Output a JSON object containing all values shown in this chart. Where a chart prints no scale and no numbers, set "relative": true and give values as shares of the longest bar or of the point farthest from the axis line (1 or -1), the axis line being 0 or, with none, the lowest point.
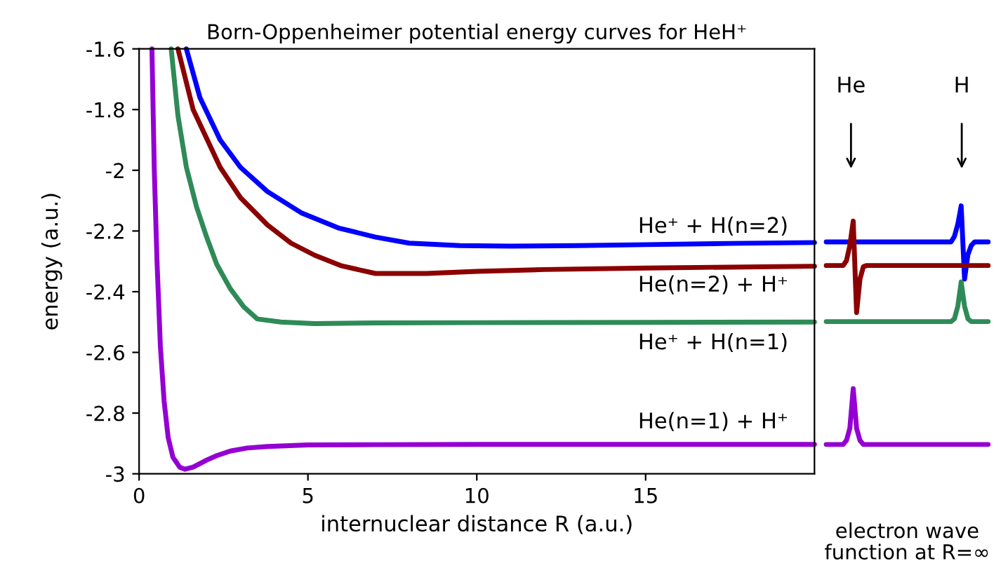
{
  "chart_data": [
    {
      "type": "line",
      "title": "Born-Oppenheimer potential energy curves for HeH⁺",
      "xlabel": "internuclear distance R (a.u.)",
      "ylabel": "energy (a.u.)",
      "xlim": [
        0,
        20
      ],
      "ylim": [
        -3,
        -1.6
      ],
      "xticks": [
        0,
        5,
        10,
        15
      ],
      "yticks": [
        -3,
        -2.8,
        -2.6,
        -2.4,
        -2.2,
        -2,
        -1.8,
        -1.6
      ],
      "grid": false,
      "legend": false,
      "series": [
        {
          "color": "#0000ff",
          "x": [
            1.4,
            1.8,
            2.4,
            3.0,
            3.8,
            4.8,
            5.9,
            7,
            8,
            9.5,
            11,
            13,
            15,
            17.5,
            20
          ],
          "values": [
            -1.6,
            -1.76,
            -1.9,
            -1.99,
            -2.07,
            -2.14,
            -2.19,
            -2.22,
            -2.24,
            -2.248,
            -2.25,
            -2.248,
            -2.245,
            -2.241,
            -2.238
          ]
        },
        {
          "color": "#8b0000",
          "x": [
            1.15,
            1.6,
            2.4,
            3.0,
            3.8,
            4.5,
            5.2,
            6,
            7,
            8.5,
            10,
            12,
            15,
            17.5,
            20
          ],
          "values": [
            -1.6,
            -1.8,
            -1.99,
            -2.09,
            -2.18,
            -2.24,
            -2.28,
            -2.315,
            -2.34,
            -2.34,
            -2.333,
            -2.327,
            -2.322,
            -2.319,
            -2.316
          ]
        },
        {
          "color": "#2e8b57",
          "x": [
            0.95,
            1.15,
            1.4,
            1.7,
            2.0,
            2.3,
            2.7,
            3.1,
            3.5,
            4.2,
            5.2,
            7,
            10,
            15,
            20
          ],
          "values": [
            -1.6,
            -1.82,
            -1.99,
            -2.12,
            -2.22,
            -2.31,
            -2.39,
            -2.45,
            -2.49,
            -2.5,
            -2.505,
            -2.503,
            -2.502,
            -2.501,
            -2.5
          ]
        },
        {
          "color": "#9400d3",
          "x": [
            0.38,
            0.45,
            0.53,
            0.63,
            0.74,
            0.86,
            1.0,
            1.2,
            1.36,
            1.6,
            2.0,
            2.3,
            2.7,
            3.2,
            3.8,
            5,
            7,
            10,
            15,
            20
          ],
          "values": [
            -1.6,
            -2.0,
            -2.3,
            -2.58,
            -2.76,
            -2.88,
            -2.945,
            -2.978,
            -2.985,
            -2.978,
            -2.955,
            -2.94,
            -2.925,
            -2.915,
            -2.91,
            -2.905,
            -2.904,
            -2.903,
            -2.903,
            -2.903
          ]
        }
      ],
      "annotations": [
        "He⁺ + H(n=2)",
        "He(n=2) + H⁺",
        "He⁺ + H(n=1)",
        "He(n=1) + H⁺"
      ]
    },
    {
      "type": "line",
      "xlabel": "electron wave function at R=∞",
      "relative": true,
      "legend": false,
      "grid": false,
      "categories": [
        null,
        null,
        null,
        null,
        null,
        null,
        null,
        null,
        null,
        null,
        null,
        null,
        null,
        null,
        null,
        null,
        null,
        null,
        null,
        null,
        null,
        null,
        null,
        null,
        null,
        null,
        null,
        null,
        null,
        null,
        null,
        null,
        null,
        null,
        null,
        null,
        null,
        null,
        null,
        null,
        null,
        null,
        null,
        null,
        null,
        null,
        null,
        null,
        null
      ],
      "series": [
        {
          "color": "#0000ff",
          "values": [
            0.849,
            0.849,
            0.849,
            0.849,
            0.849,
            0.849,
            0.849,
            0.849,
            0.849,
            0.849,
            0.849,
            0.849,
            0.849,
            0.849,
            0.849,
            0.849,
            0.849,
            0.849,
            0.849,
            0.849,
            0.849,
            0.849,
            0.849,
            0.849,
            0.849,
            0.849,
            0.849,
            0.849,
            0.849,
            0.849,
            0.849,
            0.849,
            0.849,
            0.849,
            0.849,
            0.849,
            0.849,
            0.849,
            0.872,
            0.923,
            1,
            0.693,
            0.796,
            0.834,
            0.849,
            0.849,
            0.849,
            0.849,
            0.849
          ]
        },
        {
          "color": "#8b0000",
          "values": [
            0.75,
            0.75,
            0.75,
            0.75,
            0.75,
            0.75,
            0.77,
            0.834,
            0.936,
            0.553,
            0.693,
            0.745,
            0.75,
            0.75,
            0.75,
            0.75,
            0.75,
            0.75,
            0.75,
            0.75,
            0.75,
            0.75,
            0.75,
            0.75,
            0.75,
            0.75,
            0.75,
            0.75,
            0.75,
            0.75,
            0.75,
            0.75,
            0.75,
            0.75,
            0.75,
            0.75,
            0.75,
            0.75,
            0.75,
            0.75,
            0.75,
            0.75,
            0.75,
            0.75,
            0.75,
            0.75,
            0.75,
            0.75,
            0.75
          ]
        },
        {
          "color": "#2e8b57",
          "values": [
            0.515,
            0.515,
            0.515,
            0.515,
            0.515,
            0.515,
            0.515,
            0.515,
            0.515,
            0.515,
            0.515,
            0.515,
            0.515,
            0.515,
            0.515,
            0.515,
            0.515,
            0.515,
            0.515,
            0.515,
            0.515,
            0.515,
            0.515,
            0.515,
            0.515,
            0.515,
            0.515,
            0.515,
            0.515,
            0.515,
            0.515,
            0.515,
            0.515,
            0.515,
            0.515,
            0.515,
            0.515,
            0.515,
            0.527,
            0.579,
            0.681,
            0.579,
            0.527,
            0.515,
            0.515,
            0.515,
            0.515,
            0.515,
            0.515
          ]
        },
        {
          "color": "#9400d3",
          "values": [
            0,
            0,
            0,
            0,
            0,
            0,
            0.017,
            0.068,
            0.234,
            0.068,
            0.017,
            0,
            0,
            0,
            0,
            0,
            0,
            0,
            0,
            0,
            0,
            0,
            0,
            0,
            0,
            0,
            0,
            0,
            0,
            0,
            0,
            0,
            0,
            0,
            0,
            0,
            0,
            0,
            0,
            0,
            0,
            0,
            0,
            0,
            0,
            0,
            0,
            0,
            0
          ]
        }
      ],
      "annotations": [
        "He",
        "H"
      ]
    }
  ]
}
